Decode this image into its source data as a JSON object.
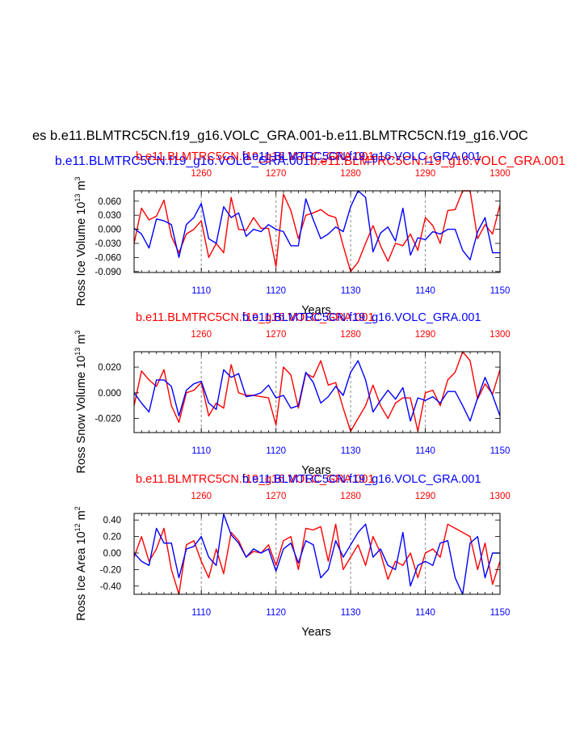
{
  "figure": {
    "main_title": "es b.e11.BLMTRC5CN.f19_g16.VOLC_GRA.001-b.e11.BLMTRC5CN.f19_g16.VOC",
    "top_blue_title": "b.e11.BLMTRC5CN.f19_g16.VOLC_GRA.001",
    "top_red_title": "b.e11.BLMTRC5CN.f19_g16.VOLC_GRA.001",
    "xlabel": "Years",
    "colors": {
      "series_a": "#ff0000",
      "series_b": "#0000ff",
      "grid": "#999999"
    }
  },
  "chart_data": [
    {
      "type": "line",
      "ylabel": "Ross Ice Volume 10^13 m^3",
      "ylabel_parts": [
        "Ross Ice Volume 10",
        "13",
        " m",
        "3"
      ],
      "panel_title_red": "b.e11.BLMTRC5CN.f19_g16.VOLC_GRA.001",
      "panel_title_blue": "b.e11.BLMTRC5CN.f19_g16.VOLC_GRA.001",
      "xlabel": "Years",
      "xlim_bottom": [
        1101,
        1150
      ],
      "xlim_top": [
        1251,
        1300
      ],
      "xticks_bottom": [
        1110,
        1120,
        1130,
        1140,
        1150
      ],
      "xticks_top": [
        1260,
        1270,
        1280,
        1290,
        1300
      ],
      "ylim": [
        -0.092,
        0.082
      ],
      "yticks": [
        0.06,
        0.03,
        0.0,
        -0.03,
        -0.06,
        -0.09
      ],
      "ytick_labels": [
        "0.060",
        "0.030",
        "0.000",
        "-0.030",
        "-0.060",
        "-0.090"
      ],
      "show_xlabel": true,
      "series": [
        {
          "name": "b.e11.BLMTRC5CN.f19_g16.VOLC_GRA.001",
          "axis": "top",
          "color": "#ff0000",
          "values": [
            -0.03,
            0.045,
            0.02,
            0.028,
            0.062,
            -0.015,
            -0.05,
            -0.01,
            0.0,
            0.018,
            -0.06,
            -0.03,
            -0.05,
            0.068,
            0.0,
            -0.002,
            0.025,
            0.002,
            0.002,
            -0.08,
            0.075,
            0.04,
            -0.02,
            0.03,
            0.035,
            0.042,
            0.03,
            0.025,
            -0.035,
            -0.09,
            -0.07,
            -0.03,
            0.008,
            -0.035,
            -0.068,
            -0.03,
            -0.035,
            -0.01,
            -0.045,
            0.025,
            0.008,
            -0.03,
            0.04,
            0.042,
            0.082,
            0.082,
            -0.02,
            0.01,
            -0.01,
            0.052
          ]
        },
        {
          "name": "b.e11.BLMTRC5CN.f19_g16.VOLC_GRA.001",
          "axis": "bottom",
          "color": "#0000ff",
          "values": [
            0.002,
            -0.01,
            -0.04,
            0.022,
            0.018,
            0.01,
            -0.06,
            0.01,
            0.025,
            0.055,
            -0.02,
            -0.03,
            0.048,
            0.025,
            0.035,
            -0.015,
            0.0,
            -0.005,
            0.01,
            0.0,
            -0.005,
            -0.035,
            -0.035,
            0.065,
            0.02,
            -0.02,
            -0.01,
            0.005,
            -0.005,
            0.048,
            0.082,
            0.068,
            -0.048,
            -0.008,
            0.005,
            -0.025,
            0.045,
            -0.055,
            -0.018,
            -0.022,
            -0.005,
            -0.01,
            0.0,
            0.0,
            -0.045,
            -0.065,
            -0.005,
            0.025,
            -0.05,
            -0.05
          ]
        }
      ]
    },
    {
      "type": "line",
      "ylabel": "Ross Snow Volume 10^13 m^3",
      "ylabel_parts": [
        "Ross Snow Volume 10",
        "13",
        " m",
        "3"
      ],
      "panel_title_red": "b.e11.BLMTRC5CN.f19_g16.VOLC_GRA.001",
      "panel_title_blue": "b.e11.BLMTRC5CN.f19_g16.VOLC_GRA.001",
      "xlabel": "Years",
      "xlim_bottom": [
        1101,
        1150
      ],
      "xlim_top": [
        1251,
        1300
      ],
      "xticks_bottom": [
        1110,
        1120,
        1130,
        1140,
        1150
      ],
      "xticks_top": [
        1260,
        1270,
        1280,
        1290,
        1300
      ],
      "ylim": [
        -0.031,
        0.032
      ],
      "yticks": [
        0.02,
        0.0,
        -0.02
      ],
      "ytick_labels": [
        "0.020",
        "0.000",
        "-0.020"
      ],
      "show_xlabel": true,
      "series": [
        {
          "name": "b.e11.BLMTRC5CN.f19_g16.VOLC_GRA.001",
          "axis": "top",
          "color": "#ff0000",
          "values": [
            -0.01,
            0.017,
            0.01,
            0.005,
            0.018,
            -0.01,
            -0.023,
            0.0,
            0.002,
            0.008,
            -0.018,
            -0.008,
            -0.012,
            0.022,
            0.0,
            -0.002,
            -0.002,
            -0.003,
            -0.004,
            -0.025,
            0.02,
            0.014,
            -0.012,
            0.015,
            0.012,
            0.025,
            0.006,
            0.008,
            -0.012,
            -0.03,
            -0.02,
            -0.01,
            0.006,
            -0.01,
            -0.02,
            -0.008,
            -0.004,
            -0.004,
            -0.03,
            0.0,
            0.002,
            -0.01,
            0.01,
            0.016,
            0.032,
            0.025,
            -0.005,
            0.007,
            -0.001,
            0.018
          ]
        },
        {
          "name": "b.e11.BLMTRC5CN.f19_g16.VOLC_GRA.001",
          "axis": "bottom",
          "color": "#0000ff",
          "values": [
            0.0,
            -0.008,
            -0.015,
            0.01,
            0.01,
            0.005,
            -0.018,
            0.002,
            0.007,
            0.009,
            -0.008,
            -0.013,
            0.018,
            0.012,
            0.015,
            -0.003,
            -0.002,
            0.0,
            0.006,
            -0.004,
            -0.002,
            -0.012,
            -0.01,
            0.016,
            0.008,
            -0.008,
            -0.003,
            0.005,
            -0.002,
            0.016,
            0.025,
            0.01,
            -0.015,
            -0.006,
            0.002,
            -0.005,
            0.004,
            -0.022,
            -0.004,
            -0.006,
            -0.003,
            -0.008,
            0.001,
            0.001,
            -0.01,
            -0.022,
            -0.004,
            0.012,
            -0.002,
            -0.018
          ]
        }
      ]
    },
    {
      "type": "line",
      "ylabel": "Ross Ice Area 10^12 m^2",
      "ylabel_parts": [
        "Ross Ice Area 10",
        "12",
        " m",
        "2"
      ],
      "panel_title_red": "b.e11.BLMTRC5CN.f19_g16.VOLC_GRA.001",
      "panel_title_blue": "b.e11.BLMTRC5CN.f19_g16.VOLC_GRA.001",
      "xlabel": "Years",
      "xlim_bottom": [
        1101,
        1150
      ],
      "xlim_top": [
        1251,
        1300
      ],
      "xticks_bottom": [
        1110,
        1120,
        1130,
        1140,
        1150
      ],
      "xticks_top": [
        1260,
        1270,
        1280,
        1290,
        1300
      ],
      "ylim": [
        -0.5,
        0.48
      ],
      "yticks": [
        0.4,
        0.2,
        0.0,
        -0.2,
        -0.4
      ],
      "ytick_labels": [
        "0.40",
        "0.20",
        "0.00",
        "-0.20",
        "-0.40"
      ],
      "show_xlabel": true,
      "series": [
        {
          "name": "b.e11.BLMTRC5CN.f19_g16.VOLC_GRA.001",
          "axis": "top",
          "color": "#ff0000",
          "values": [
            -0.05,
            0.2,
            -0.1,
            0.05,
            0.3,
            -0.2,
            -0.5,
            0.1,
            0.15,
            -0.1,
            -0.3,
            0.05,
            -0.25,
            0.25,
            0.15,
            -0.05,
            0.02,
            0.0,
            0.1,
            -0.15,
            0.15,
            0.2,
            -0.2,
            0.3,
            0.28,
            0.32,
            -0.1,
            0.35,
            -0.2,
            -0.05,
            0.1,
            -0.15,
            0.2,
            0.0,
            -0.32,
            -0.1,
            -0.15,
            0.0,
            -0.3,
            0.0,
            0.05,
            -0.05,
            0.35,
            0.3,
            0.25,
            0.2,
            -0.2,
            0.12,
            -0.38,
            -0.1
          ]
        },
        {
          "name": "b.e11.BLMTRC5CN.f19_g16.VOLC_GRA.001",
          "axis": "bottom",
          "color": "#0000ff",
          "values": [
            0.0,
            -0.1,
            -0.15,
            0.3,
            0.12,
            0.12,
            -0.3,
            0.05,
            0.08,
            0.2,
            -0.05,
            -0.15,
            0.47,
            0.22,
            0.12,
            -0.05,
            0.05,
            0.0,
            0.05,
            -0.22,
            0.05,
            0.12,
            -0.12,
            0.15,
            0.1,
            -0.3,
            -0.2,
            0.15,
            -0.05,
            0.1,
            0.25,
            0.35,
            -0.05,
            0.05,
            -0.15,
            -0.2,
            0.25,
            -0.4,
            -0.15,
            -0.1,
            -0.15,
            0.12,
            0.15,
            -0.3,
            -0.5,
            0.12,
            0.2,
            -0.3,
            0.0,
            0.0
          ]
        }
      ]
    }
  ]
}
